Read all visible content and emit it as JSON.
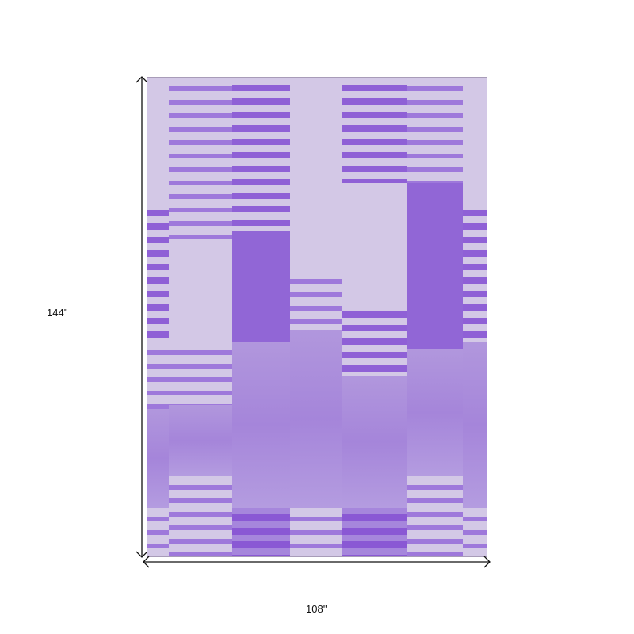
{
  "dimensions": {
    "height_label": "144''",
    "width_label": "108''"
  },
  "colors": {
    "rug_light": "#d3c8e6",
    "rug_purple": "#8f60d6",
    "arrow": "#111111"
  }
}
